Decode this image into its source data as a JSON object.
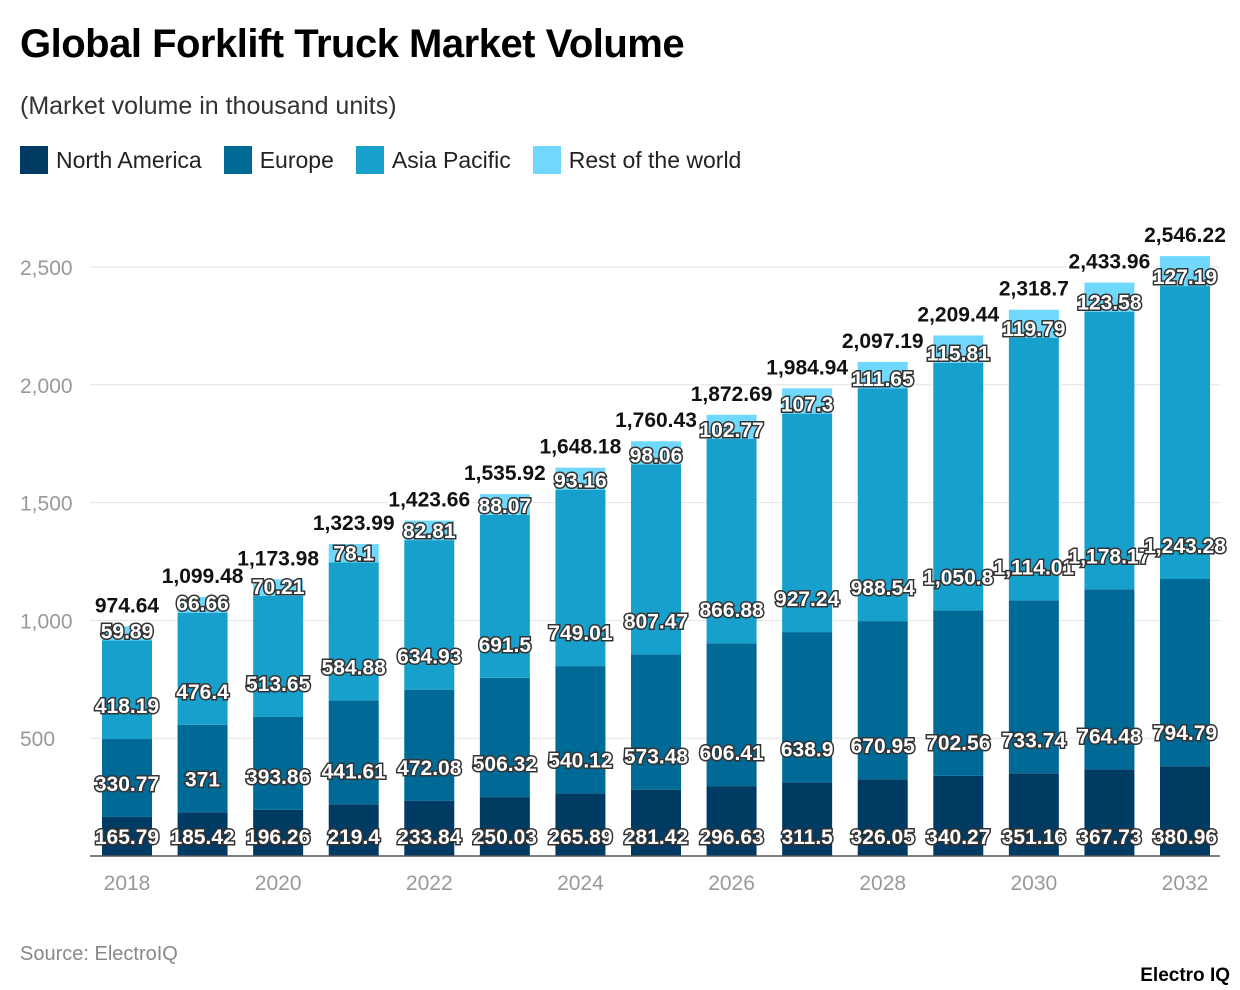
{
  "title": "Global Forklift Truck Market Volume",
  "subtitle": "(Market volume in thousand units)",
  "source": "Source: ElectroIQ",
  "logo": "Electro IQ",
  "chart_data": {
    "type": "bar",
    "stacked": true,
    "title": "Global Forklift Truck Market Volume",
    "subtitle": "(Market volume in thousand units)",
    "categories": [
      "2018",
      "2019",
      "2020",
      "2021",
      "2022",
      "2023",
      "2024",
      "2025",
      "2026",
      "2027",
      "2028",
      "2029",
      "2030",
      "2031",
      "2032"
    ],
    "x_tick_labels": [
      "2018",
      "2020",
      "2022",
      "2024",
      "2026",
      "2028",
      "2030",
      "2032"
    ],
    "y_ticks": [
      500,
      1000,
      1500,
      2000,
      2500
    ],
    "y_tick_labels": [
      "500",
      "1,000",
      "1,500",
      "2,000",
      "2,500"
    ],
    "ylim": [
      0,
      2500
    ],
    "grid": true,
    "legend_position": "top-left",
    "series": [
      {
        "name": "North America",
        "color": "#003b63",
        "values": [
          165.79,
          185.42,
          196.26,
          219.4,
          233.84,
          250.03,
          265.89,
          281.42,
          296.63,
          311.5,
          326.05,
          340.27,
          351.16,
          367.73,
          380.96
        ]
      },
      {
        "name": "Europe",
        "color": "#006a96",
        "values": [
          330.77,
          371,
          393.86,
          441.61,
          472.08,
          506.32,
          540.12,
          573.48,
          606.41,
          638.9,
          670.95,
          702.56,
          733.74,
          764.48,
          794.79
        ]
      },
      {
        "name": "Asia Pacific",
        "color": "#18a0cd",
        "values": [
          418.19,
          476.4,
          513.65,
          584.88,
          634.93,
          691.5,
          749.01,
          807.47,
          866.88,
          927.24,
          988.54,
          1050.8,
          1114.01,
          1178.17,
          1243.28
        ]
      },
      {
        "name": "Rest of the world",
        "color": "#6fd8fc",
        "values": [
          59.89,
          66.66,
          70.21,
          78.1,
          82.81,
          88.07,
          93.16,
          98.06,
          102.77,
          107.3,
          111.65,
          115.81,
          119.79,
          123.58,
          127.19
        ]
      }
    ],
    "totals": [
      974.64,
      1099.48,
      1173.98,
      1323.99,
      1423.66,
      1535.92,
      1648.18,
      1760.43,
      1872.69,
      1984.94,
      2097.19,
      2209.44,
      2318.7,
      2433.96,
      2546.22
    ]
  }
}
